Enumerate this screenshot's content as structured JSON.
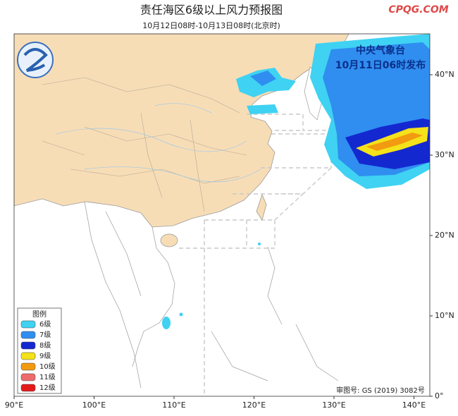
{
  "title": "责任海区6级以上风力预报图",
  "subtitle": "10月12日08时-10月13日08时(北京时)",
  "watermark": "CPQG.COM",
  "issuer": "中央气象台",
  "issue_time": "10月11日06时发布",
  "approval": "审图号: GS (2019) 3082号",
  "legend": {
    "title": "图例",
    "items": [
      {
        "label": "6级",
        "color": "#3fd2f2"
      },
      {
        "label": "7级",
        "color": "#2f8ef0"
      },
      {
        "label": "8级",
        "color": "#1428d0"
      },
      {
        "label": "9级",
        "color": "#f4e21a"
      },
      {
        "label": "10级",
        "color": "#f29a10"
      },
      {
        "label": "11级",
        "color": "#ee6b6b"
      },
      {
        "label": "12级",
        "color": "#e41a1a"
      }
    ]
  },
  "lon_ticks": [
    {
      "value": 90,
      "label": "90°E"
    },
    {
      "value": 100,
      "label": "100°E"
    },
    {
      "value": 110,
      "label": "110°E"
    },
    {
      "value": 120,
      "label": "120°E"
    },
    {
      "value": 130,
      "label": "130°E"
    },
    {
      "value": 140,
      "label": "140°E"
    }
  ],
  "lat_ticks": [
    {
      "value": 0,
      "label": "0°"
    },
    {
      "value": 10,
      "label": "10°N"
    },
    {
      "value": 20,
      "label": "20°N"
    },
    {
      "value": 30,
      "label": "30°N"
    },
    {
      "value": 40,
      "label": "40°N"
    }
  ]
}
